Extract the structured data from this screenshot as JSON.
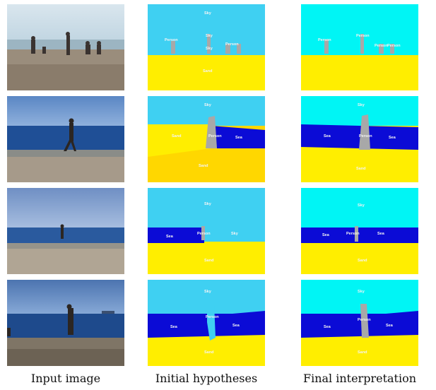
{
  "columns": [
    "Input image",
    "Initial hypotheses",
    "Final interpretation"
  ],
  "colors": {
    "sky": "#3fd0f2",
    "sky_final": "#00f5f5",
    "sand": "#ffee00",
    "sand_dark": "#ffd700",
    "sea": "#0b0bd6",
    "person": "#a8a8a8"
  },
  "rows": [
    {
      "initial_labels": [
        "Sky",
        "Person",
        "Sky",
        "Sky",
        "Person",
        "Sand"
      ],
      "final_labels": [
        "Person",
        "Person",
        "Person",
        "Person"
      ]
    },
    {
      "initial_labels": [
        "Sky",
        "Sand",
        "Person",
        "Sea",
        "Sand"
      ],
      "final_labels": [
        "Sea",
        "Person",
        "Sea",
        "Sky",
        "Sand"
      ]
    },
    {
      "initial_labels": [
        "Sky",
        "Sea",
        "Person",
        "Sky",
        "Sand"
      ],
      "final_labels": [
        "Sky",
        "Sea",
        "Person",
        "Sea",
        "Sand"
      ]
    },
    {
      "initial_labels": [
        "Sky",
        "Sea",
        "Person",
        "Sea",
        "Sand"
      ],
      "final_labels": [
        "Sky",
        "Sea",
        "Person",
        "Sea",
        "Sand"
      ]
    }
  ]
}
